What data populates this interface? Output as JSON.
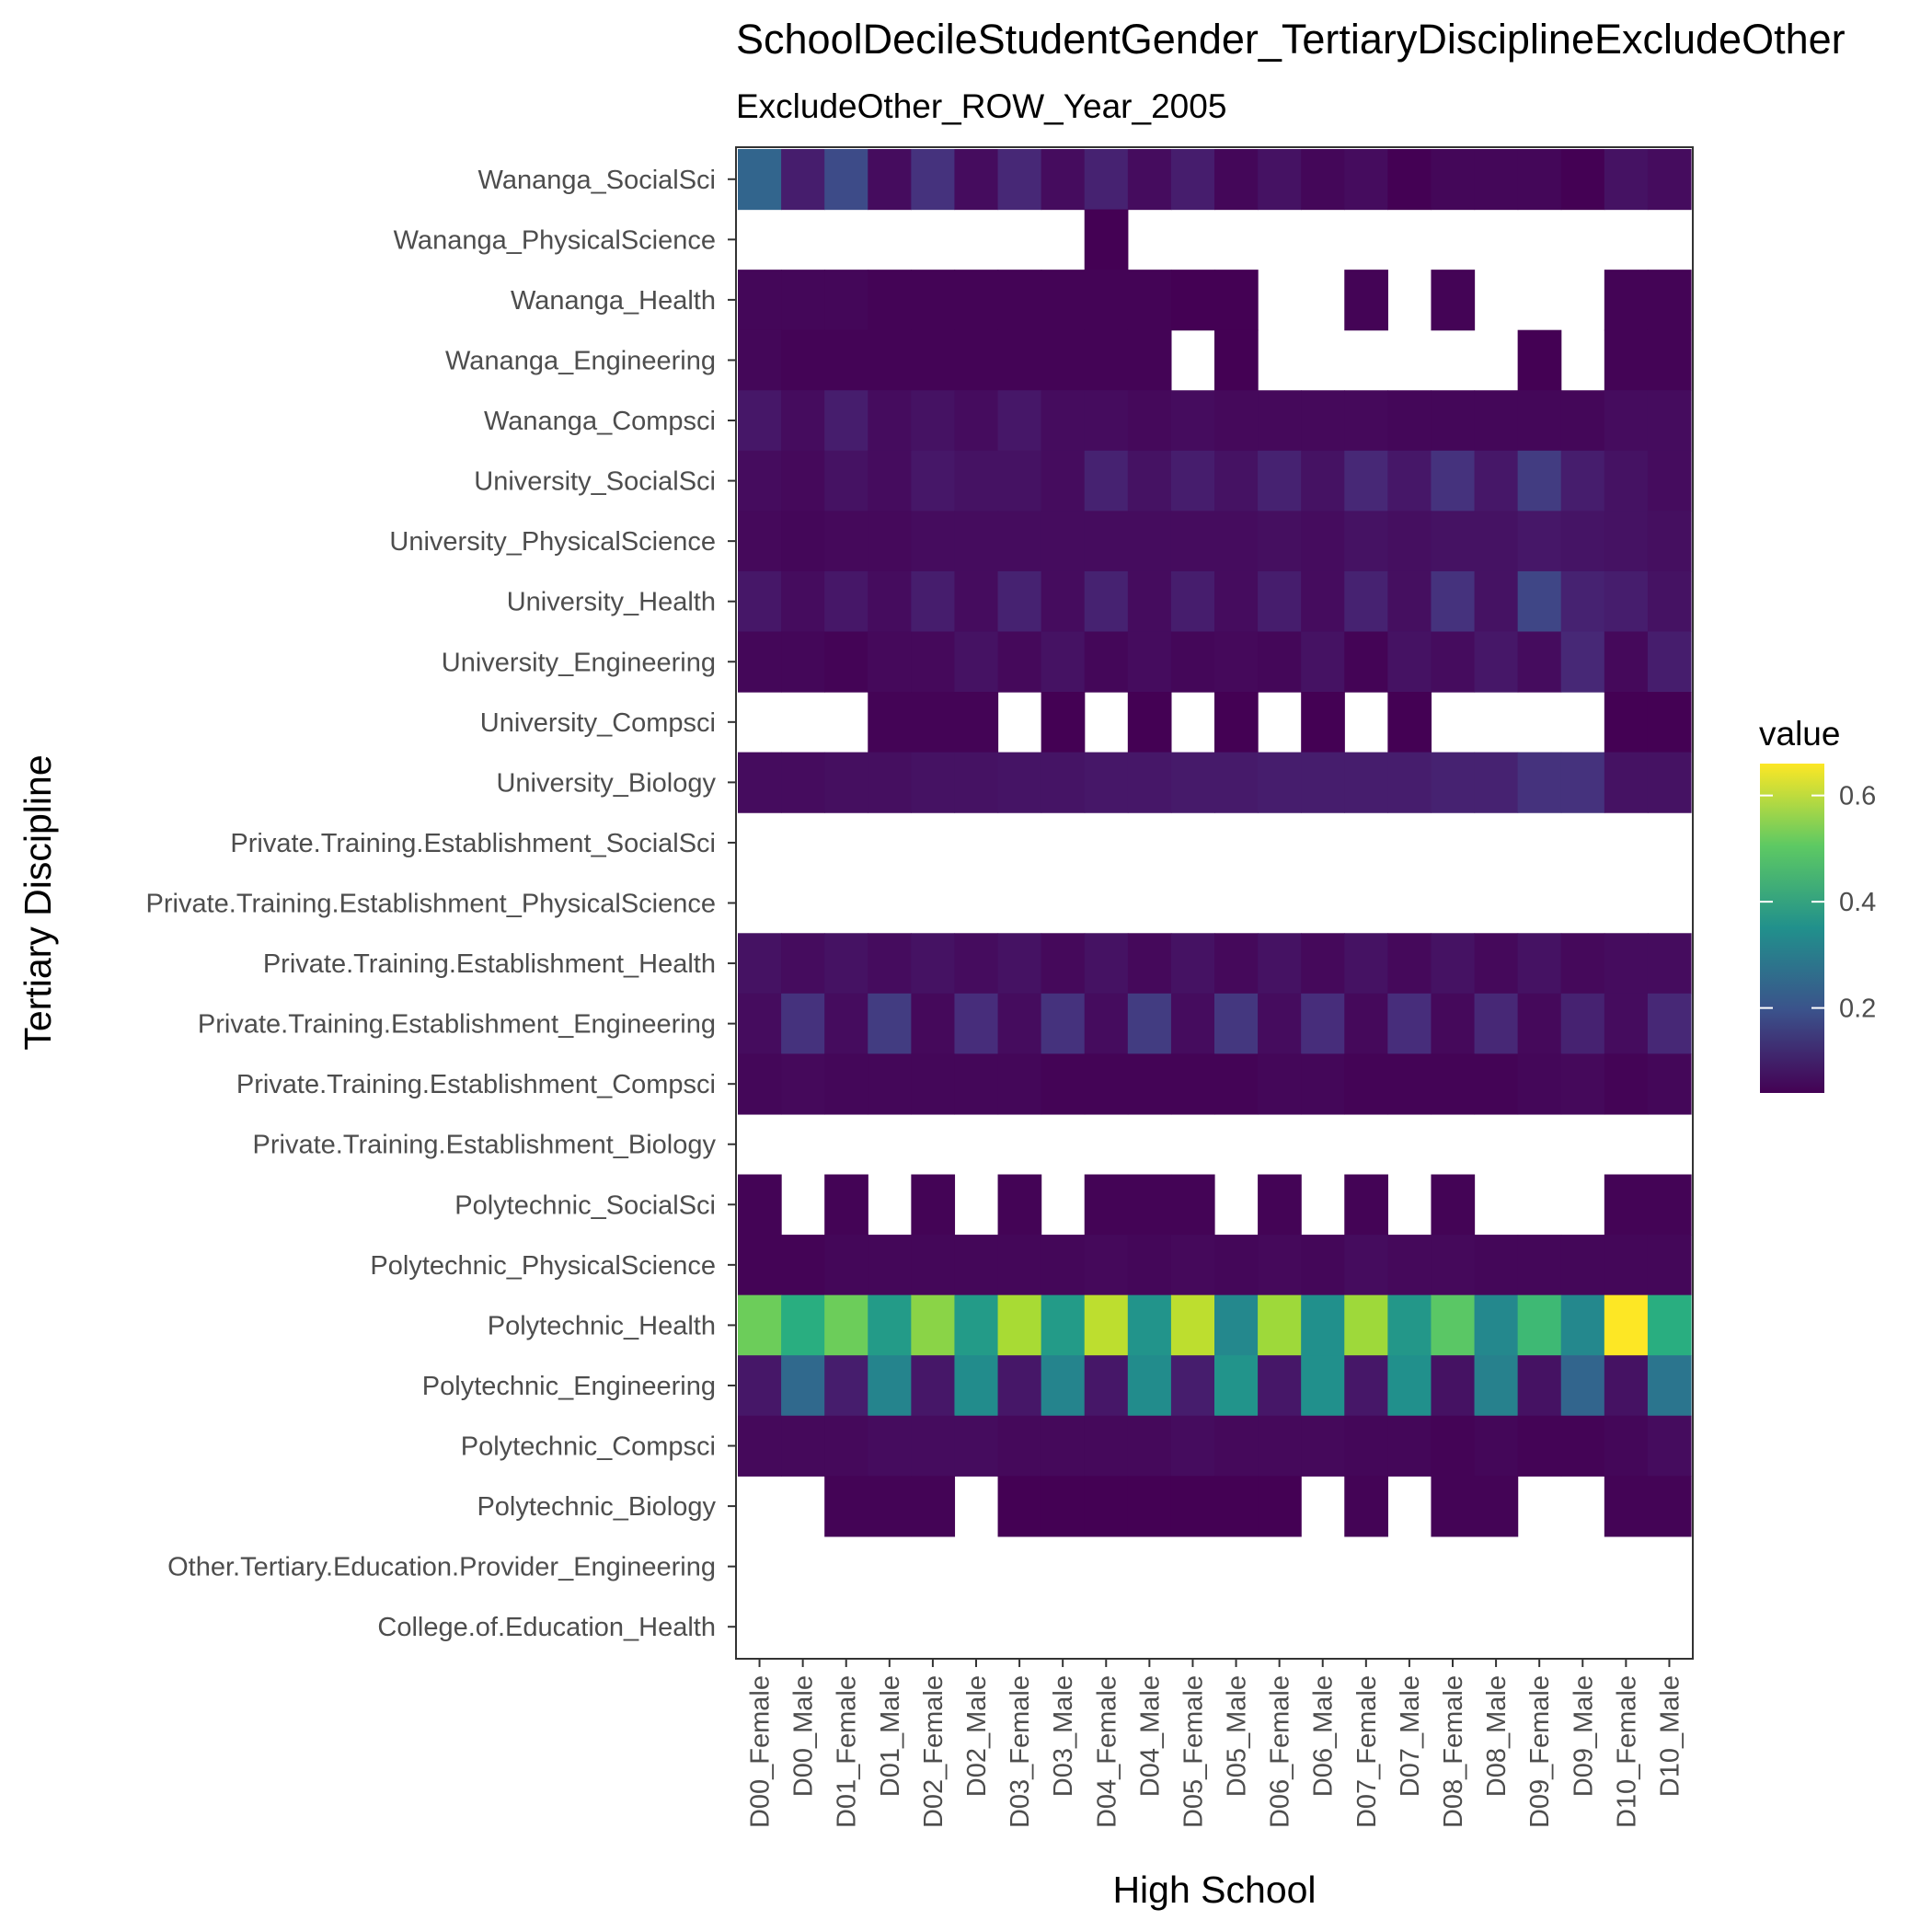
{
  "chart_data": {
    "type": "heatmap",
    "title": "SchoolDecileStudentGender_TertiaryDisciplineExcludeOther",
    "subtitle": "ExcludeOther_ROW_Year_2005",
    "xlabel": "High School",
    "ylabel": "Tertiary Discipline",
    "legend_title": "value",
    "legend_ticks": [
      0.2,
      0.4,
      0.6
    ],
    "value_range": [
      0.04,
      0.66
    ],
    "colormap": "viridis",
    "legend_position": "right",
    "x": [
      "D00_Female",
      "D00_Male",
      "D01_Female",
      "D01_Male",
      "D02_Female",
      "D02_Male",
      "D03_Female",
      "D03_Male",
      "D04_Female",
      "D04_Male",
      "D05_Female",
      "D05_Male",
      "D06_Female",
      "D06_Male",
      "D07_Female",
      "D07_Male",
      "D08_Female",
      "D08_Male",
      "D09_Female",
      "D09_Male",
      "D10_Female",
      "D10_Male"
    ],
    "y": [
      "Wananga_SocialSci",
      "Wananga_PhysicalScience",
      "Wananga_Health",
      "Wananga_Engineering",
      "Wananga_Compsci",
      "University_SocialSci",
      "University_PhysicalScience",
      "University_Health",
      "University_Engineering",
      "University_Compsci",
      "University_Biology",
      "Private.Training.Establishment_SocialSci",
      "Private.Training.Establishment_PhysicalScience",
      "Private.Training.Establishment_Health",
      "Private.Training.Establishment_Engineering",
      "Private.Training.Establishment_Compsci",
      "Private.Training.Establishment_Biology",
      "Polytechnic_SocialSci",
      "Polytechnic_PhysicalScience",
      "Polytechnic_Health",
      "Polytechnic_Engineering",
      "Polytechnic_Compsci",
      "Polytechnic_Biology",
      "Other.Tertiary.Education.Provider_Engineering",
      "College.of.Education_Health"
    ],
    "values": [
      [
        0.24,
        0.09,
        0.18,
        0.06,
        0.13,
        0.06,
        0.11,
        0.06,
        0.1,
        0.06,
        0.09,
        0.05,
        0.07,
        0.05,
        0.06,
        0.04,
        0.05,
        0.05,
        0.05,
        0.04,
        0.07,
        0.06
      ],
      [
        null,
        null,
        null,
        null,
        null,
        null,
        null,
        null,
        0.04,
        null,
        null,
        null,
        null,
        null,
        null,
        null,
        null,
        null,
        null,
        null,
        null,
        null
      ],
      [
        0.05,
        0.05,
        0.05,
        0.045,
        0.045,
        0.045,
        0.045,
        0.045,
        0.045,
        0.045,
        0.04,
        0.04,
        null,
        null,
        0.045,
        null,
        0.045,
        null,
        null,
        null,
        0.045,
        0.045
      ],
      [
        0.05,
        0.045,
        0.045,
        0.045,
        0.045,
        0.045,
        0.045,
        0.045,
        0.045,
        0.045,
        null,
        0.04,
        null,
        null,
        null,
        null,
        null,
        null,
        0.04,
        null,
        0.045,
        0.045
      ],
      [
        0.08,
        0.06,
        0.09,
        0.06,
        0.07,
        0.06,
        0.08,
        0.06,
        0.06,
        0.055,
        0.06,
        0.055,
        0.055,
        0.055,
        0.055,
        0.05,
        0.05,
        0.05,
        0.05,
        0.05,
        0.06,
        0.06
      ],
      [
        0.06,
        0.055,
        0.07,
        0.06,
        0.08,
        0.07,
        0.07,
        0.06,
        0.1,
        0.07,
        0.09,
        0.07,
        0.1,
        0.07,
        0.11,
        0.08,
        0.13,
        0.08,
        0.15,
        0.09,
        0.07,
        0.06
      ],
      [
        0.055,
        0.05,
        0.055,
        0.055,
        0.06,
        0.06,
        0.06,
        0.06,
        0.06,
        0.06,
        0.06,
        0.06,
        0.065,
        0.06,
        0.07,
        0.065,
        0.07,
        0.07,
        0.08,
        0.075,
        0.07,
        0.065
      ],
      [
        0.08,
        0.06,
        0.08,
        0.06,
        0.09,
        0.06,
        0.1,
        0.06,
        0.1,
        0.06,
        0.09,
        0.06,
        0.09,
        0.06,
        0.1,
        0.065,
        0.13,
        0.07,
        0.17,
        0.1,
        0.09,
        0.07
      ],
      [
        0.05,
        0.05,
        0.045,
        0.055,
        0.055,
        0.07,
        0.055,
        0.07,
        0.05,
        0.06,
        0.05,
        0.055,
        0.05,
        0.07,
        0.045,
        0.07,
        0.06,
        0.08,
        0.06,
        0.11,
        0.055,
        0.09
      ],
      [
        null,
        null,
        null,
        0.045,
        0.045,
        0.045,
        null,
        0.04,
        null,
        0.04,
        null,
        0.04,
        null,
        0.035,
        null,
        0.04,
        null,
        null,
        null,
        null,
        0.04,
        0.04
      ],
      [
        0.06,
        0.06,
        0.065,
        0.065,
        0.07,
        0.07,
        0.075,
        0.075,
        0.08,
        0.08,
        0.085,
        0.085,
        0.09,
        0.09,
        0.09,
        0.09,
        0.1,
        0.1,
        0.13,
        0.13,
        0.07,
        0.07
      ],
      [
        null,
        null,
        null,
        null,
        null,
        null,
        null,
        null,
        null,
        null,
        null,
        null,
        null,
        null,
        null,
        null,
        null,
        null,
        null,
        null,
        null,
        null
      ],
      [
        null,
        null,
        null,
        null,
        null,
        null,
        null,
        null,
        null,
        null,
        null,
        null,
        null,
        null,
        null,
        null,
        null,
        null,
        null,
        null,
        null,
        null
      ],
      [
        0.07,
        0.06,
        0.07,
        0.06,
        0.07,
        0.06,
        0.07,
        0.055,
        0.07,
        0.055,
        0.07,
        0.055,
        0.07,
        0.055,
        0.07,
        0.055,
        0.07,
        0.055,
        0.07,
        0.055,
        0.06,
        0.06
      ],
      [
        0.06,
        0.13,
        0.06,
        0.15,
        0.055,
        0.12,
        0.06,
        0.13,
        0.06,
        0.15,
        0.06,
        0.14,
        0.06,
        0.12,
        0.055,
        0.12,
        0.055,
        0.11,
        0.055,
        0.1,
        0.06,
        0.11
      ],
      [
        0.05,
        0.055,
        0.05,
        0.05,
        0.05,
        0.05,
        0.05,
        0.045,
        0.045,
        0.045,
        0.045,
        0.045,
        0.05,
        0.05,
        0.045,
        0.045,
        0.045,
        0.045,
        0.05,
        0.055,
        0.045,
        0.05
      ],
      [
        null,
        null,
        null,
        null,
        null,
        null,
        null,
        null,
        null,
        null,
        null,
        null,
        null,
        null,
        null,
        null,
        null,
        null,
        null,
        null,
        null,
        null
      ],
      [
        0.045,
        null,
        0.045,
        null,
        0.045,
        null,
        0.045,
        null,
        0.045,
        0.045,
        0.045,
        null,
        0.045,
        null,
        0.045,
        null,
        0.045,
        null,
        null,
        null,
        0.045,
        0.045
      ],
      [
        0.045,
        0.045,
        0.05,
        0.05,
        0.05,
        0.05,
        0.05,
        0.05,
        0.055,
        0.05,
        0.055,
        0.05,
        0.055,
        0.05,
        0.06,
        0.055,
        0.055,
        0.05,
        0.05,
        0.05,
        0.05,
        0.05
      ],
      [
        0.52,
        0.43,
        0.52,
        0.38,
        0.55,
        0.38,
        0.58,
        0.38,
        0.6,
        0.36,
        0.6,
        0.33,
        0.57,
        0.35,
        0.57,
        0.37,
        0.5,
        0.33,
        0.46,
        0.33,
        0.66,
        0.43
      ],
      [
        0.08,
        0.25,
        0.09,
        0.32,
        0.08,
        0.34,
        0.08,
        0.32,
        0.08,
        0.34,
        0.09,
        0.36,
        0.08,
        0.35,
        0.08,
        0.35,
        0.07,
        0.31,
        0.07,
        0.24,
        0.07,
        0.28
      ],
      [
        0.055,
        0.055,
        0.055,
        0.06,
        0.06,
        0.06,
        0.055,
        0.055,
        0.055,
        0.055,
        0.06,
        0.055,
        0.055,
        0.055,
        0.05,
        0.05,
        0.045,
        0.05,
        0.045,
        0.045,
        0.05,
        0.06
      ],
      [
        null,
        null,
        0.045,
        0.045,
        0.045,
        null,
        0.04,
        0.04,
        0.04,
        0.04,
        0.04,
        0.04,
        0.04,
        null,
        0.045,
        null,
        0.045,
        0.045,
        null,
        null,
        0.045,
        0.045
      ],
      [
        null,
        null,
        null,
        null,
        null,
        null,
        null,
        null,
        null,
        null,
        null,
        null,
        null,
        null,
        null,
        null,
        null,
        null,
        null,
        null,
        null,
        null
      ],
      [
        null,
        null,
        null,
        null,
        null,
        null,
        null,
        null,
        null,
        null,
        null,
        null,
        null,
        null,
        null,
        null,
        null,
        null,
        null,
        null,
        null,
        null
      ]
    ]
  }
}
